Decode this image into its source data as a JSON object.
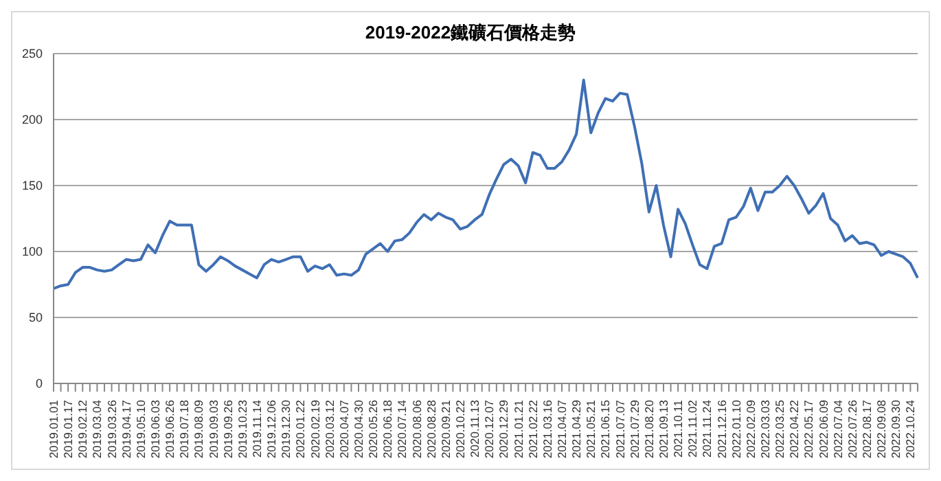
{
  "chart_data": {
    "type": "line",
    "title": "2019-2022鐵礦石價格走勢",
    "categories": [
      "2019.01.01",
      null,
      "2019.01.17",
      null,
      "2019.02.12",
      null,
      "2019.03.04",
      null,
      "2019.03.26",
      null,
      "2019.04.17",
      null,
      "2019.05.10",
      null,
      "2019.06.03",
      null,
      "2019.06.26",
      null,
      "2019.07.18",
      null,
      "2019.08.09",
      null,
      "2019.09.03",
      null,
      "2019.09.26",
      null,
      "2019.10.23",
      null,
      "2019.11.14",
      null,
      "2019.12.06",
      null,
      "2019.12.30",
      null,
      "2020.01.22",
      null,
      "2020.02.19",
      null,
      "2020.03.12",
      null,
      "2020.04.07",
      null,
      "2020.04.30",
      null,
      "2020.05.26",
      null,
      "2020.06.18",
      null,
      "2020.07.14",
      null,
      "2020.08.06",
      null,
      "2020.08.28",
      null,
      "2020.09.21",
      null,
      "2020.10.22",
      null,
      "2020.11.13",
      null,
      "2020.12.07",
      null,
      "2020.12.29",
      null,
      "2021.01.21",
      null,
      "2021.02.22",
      null,
      "2021.03.16",
      null,
      "2021.04.07",
      null,
      "2021.04.29",
      null,
      "2021.05.21",
      null,
      "2021.06.15",
      null,
      "2021.07.07",
      null,
      "2021.07.29",
      null,
      "2021.08.20",
      null,
      "2021.09.13",
      null,
      "2021.10.11",
      null,
      "2021.11.02",
      null,
      "2021.11.24",
      null,
      "2021.12.16",
      null,
      "2022.01.10",
      null,
      "2022.02.09",
      null,
      "2022.03.03",
      null,
      "2022.03.25",
      null,
      "2022.04.22",
      null,
      "2022.05.17",
      null,
      "2022.06.09",
      null,
      "2022.07.04",
      null,
      "2022.07.26",
      null,
      "2022.08.17",
      null,
      "2022.09.08",
      null,
      "2022.09.30",
      null,
      "2022.10.24",
      null
    ],
    "series": [
      {
        "color": "#3f6fb5",
        "values": [
          72,
          74,
          75,
          84,
          88,
          88,
          86,
          85,
          86,
          90,
          94,
          93,
          94,
          105,
          99,
          112,
          123,
          120,
          120,
          120,
          90,
          85,
          90,
          96,
          93,
          89,
          86,
          83,
          80,
          90,
          94,
          92,
          94,
          96,
          96,
          85,
          89,
          87,
          90,
          82,
          83,
          82,
          86,
          98,
          102,
          106,
          100,
          108,
          109,
          114,
          122,
          128,
          124,
          129,
          126,
          124,
          117,
          119,
          124,
          128,
          143,
          155,
          166,
          170,
          165,
          152,
          175,
          173,
          163,
          163,
          168,
          177,
          189,
          230,
          190,
          205,
          216,
          214,
          220,
          219,
          195,
          167,
          130,
          150,
          120,
          96,
          132,
          121,
          105,
          90,
          87,
          104,
          106,
          124,
          126,
          134,
          148,
          131,
          145,
          145,
          150,
          157,
          150,
          140,
          129,
          135,
          144,
          125,
          120,
          108,
          112,
          106,
          107,
          105,
          97,
          100,
          98,
          96,
          91,
          80
        ]
      }
    ],
    "ylim": [
      0,
      250
    ],
    "yticks": [
      0,
      50,
      100,
      150,
      200,
      250
    ],
    "grid": "y",
    "marker": "none",
    "line_style": "solid"
  }
}
